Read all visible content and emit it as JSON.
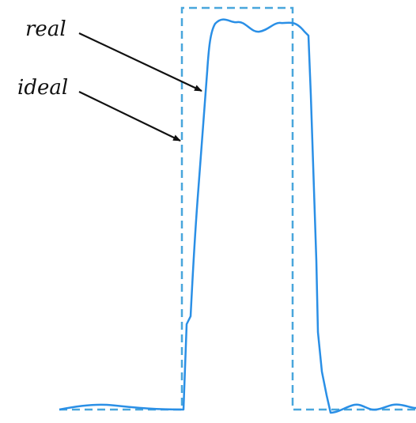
{
  "labels": {
    "real": "real",
    "ideal": "ideal"
  },
  "colors": {
    "real_curve": "#2a8fe6",
    "ideal_curve": "#48a6dc",
    "arrow": "#111111",
    "text": "#111111",
    "background": "#ffffff"
  }
}
